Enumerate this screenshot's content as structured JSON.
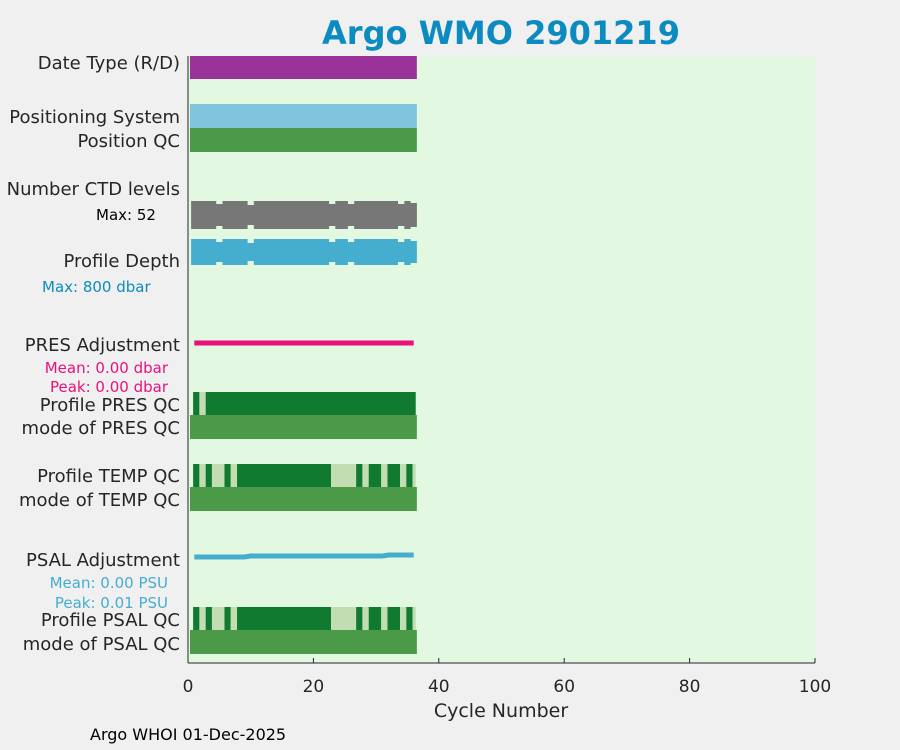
{
  "chart_data": {
    "type": "bar",
    "title": "Argo WMO 2901219",
    "xlabel": "Cycle Number",
    "xlim": [
      0,
      100
    ],
    "xticks": [
      0,
      20,
      40,
      60,
      80,
      100
    ],
    "cycles_shown": [
      1,
      36
    ],
    "rows": [
      {
        "label": "Date Type (R/D)",
        "kind": "band",
        "color": "#993399"
      },
      {
        "label": "Positioning System",
        "kind": "band",
        "color": "#80c4de"
      },
      {
        "label": "Position QC",
        "kind": "band",
        "color": "#4a9a48"
      },
      {
        "label": "Number CTD levels",
        "kind": "ragged",
        "color": "#777777",
        "note": "Max: 52",
        "max_value": 52
      },
      {
        "label": "Profile Depth",
        "kind": "ragged",
        "color": "#45aecf",
        "note": "Max:  800 dbar",
        "max_value": 800
      },
      {
        "label": "PRES Adjustment",
        "kind": "line",
        "color": "#e8127d",
        "mean": "Mean: 0.00 dbar",
        "peak": "Peak: 0.00 dbar"
      },
      {
        "label": "Profile PRES QC",
        "kind": "segments",
        "segments": [
          [
            1,
            2,
            "#107a30"
          ],
          [
            2,
            3,
            "#c2ddb2"
          ],
          [
            3,
            36.5,
            "#107a30"
          ]
        ]
      },
      {
        "label": "mode of PRES QC",
        "kind": "band",
        "color": "#4a9a48"
      },
      {
        "label": "Profile TEMP QC",
        "kind": "segments",
        "segments": [
          [
            1,
            2,
            "#107a30"
          ],
          [
            2,
            3,
            "#c2ddb2"
          ],
          [
            3,
            4,
            "#107a30"
          ],
          [
            4,
            6,
            "#c2ddb2"
          ],
          [
            6,
            7,
            "#107a30"
          ],
          [
            7,
            8,
            "#c2ddb2"
          ],
          [
            8,
            23,
            "#107a30"
          ],
          [
            23,
            27,
            "#c2ddb2"
          ],
          [
            27,
            28,
            "#107a30"
          ],
          [
            28,
            29,
            "#c2ddb2"
          ],
          [
            29,
            31,
            "#107a30"
          ],
          [
            31,
            32,
            "#c2ddb2"
          ],
          [
            32,
            34,
            "#107a30"
          ],
          [
            34,
            35,
            "#c2ddb2"
          ],
          [
            35,
            36,
            "#107a30"
          ],
          [
            36,
            36.5,
            "#c2ddb2"
          ]
        ]
      },
      {
        "label": "mode of TEMP QC",
        "kind": "band",
        "color": "#4a9a48"
      },
      {
        "label": "PSAL Adjustment",
        "kind": "line",
        "color": "#45aecf",
        "mean": "Mean: 0.00 PSU",
        "peak": "Peak: 0.01 PSU"
      },
      {
        "label": "Profile PSAL QC",
        "kind": "segments",
        "segments": [
          [
            1,
            2,
            "#107a30"
          ],
          [
            2,
            3,
            "#c2ddb2"
          ],
          [
            3,
            4,
            "#107a30"
          ],
          [
            4,
            6,
            "#c2ddb2"
          ],
          [
            6,
            7,
            "#107a30"
          ],
          [
            7,
            8,
            "#c2ddb2"
          ],
          [
            8,
            23,
            "#107a30"
          ],
          [
            23,
            27,
            "#c2ddb2"
          ],
          [
            27,
            28,
            "#107a30"
          ],
          [
            28,
            29,
            "#c2ddb2"
          ],
          [
            29,
            31,
            "#107a30"
          ],
          [
            31,
            32,
            "#c2ddb2"
          ],
          [
            32,
            34,
            "#107a30"
          ],
          [
            34,
            35,
            "#c2ddb2"
          ],
          [
            35,
            36,
            "#107a30"
          ],
          [
            36,
            36.5,
            "#c2ddb2"
          ]
        ]
      },
      {
        "label": "mode of PSAL QC",
        "kind": "band",
        "color": "#4a9a48"
      }
    ]
  },
  "colors": {
    "title": "#0c8bc0",
    "plot_bg": "#e2f8e1",
    "figure_bg": "#f0f0f0"
  },
  "footer": "Argo WHOI 01-Dec-2025"
}
